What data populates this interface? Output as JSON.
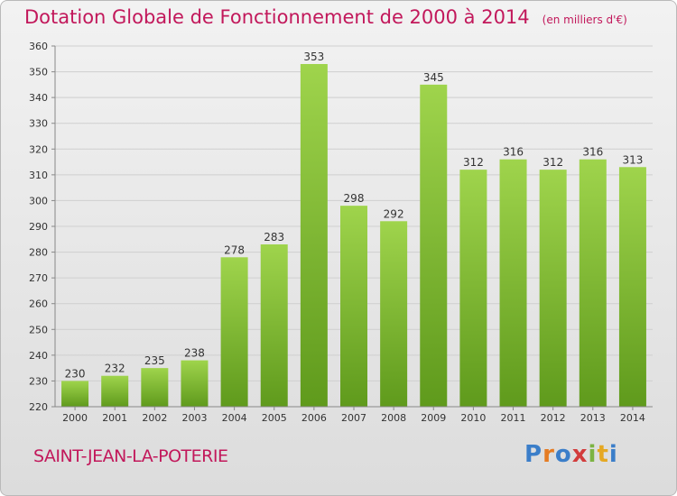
{
  "title": "Dotation Globale de Fonctionnement de 2000 à 2014",
  "unit_note": "(en milliers d'€)",
  "commune": "SAINT-JEAN-LA-POTERIE",
  "brand": {
    "letters": [
      "P",
      "r",
      "o",
      "x",
      "i",
      "t",
      "i"
    ],
    "colors": [
      "#3b7ec9",
      "#e57c23",
      "#3b7ec9",
      "#d23c3c",
      "#7cb342",
      "#e5a823",
      "#3b7ec9"
    ]
  },
  "colors": {
    "accent": "#c2185b",
    "bar_top": "#9fd44c",
    "bar_bottom": "#5f9a1c",
    "grid": "#cfcfcf"
  },
  "chart_data": {
    "type": "bar",
    "categories": [
      "2000",
      "2001",
      "2002",
      "2003",
      "2004",
      "2005",
      "2006",
      "2007",
      "2008",
      "2009",
      "2010",
      "2011",
      "2012",
      "2013",
      "2014"
    ],
    "values": [
      230,
      232,
      235,
      238,
      278,
      283,
      353,
      298,
      292,
      345,
      312,
      316,
      312,
      316,
      313
    ],
    "ylim": [
      220,
      360
    ],
    "yticks": [
      220,
      230,
      240,
      250,
      260,
      270,
      280,
      290,
      300,
      310,
      320,
      330,
      340,
      350,
      360
    ],
    "grid": true,
    "legend": "none"
  }
}
